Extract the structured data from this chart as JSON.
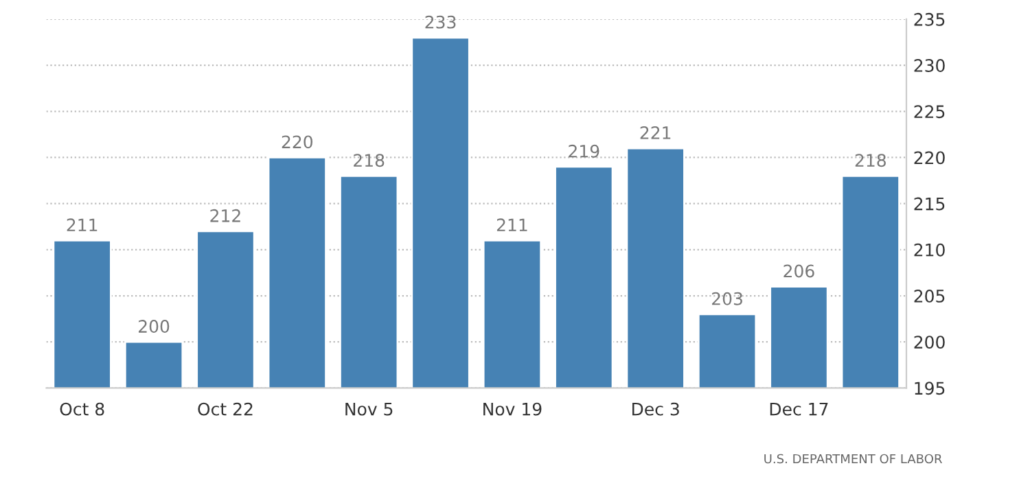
{
  "chart_data": {
    "type": "bar",
    "categories": [
      "Oct 8",
      null,
      "Oct 22",
      null,
      "Nov 5",
      null,
      "Nov 19",
      null,
      "Dec 3",
      null,
      "Dec 17",
      null
    ],
    "values": [
      211,
      200,
      212,
      220,
      218,
      233,
      211,
      219,
      221,
      203,
      206,
      218
    ],
    "color": "#4682b4",
    "ylim": [
      195,
      235
    ],
    "yticks": [
      195,
      200,
      205,
      210,
      215,
      220,
      225,
      230,
      235
    ],
    "grid": "y",
    "data_labels": true,
    "annotations": [
      "U.S. DEPARTMENT OF LABOR"
    ]
  }
}
